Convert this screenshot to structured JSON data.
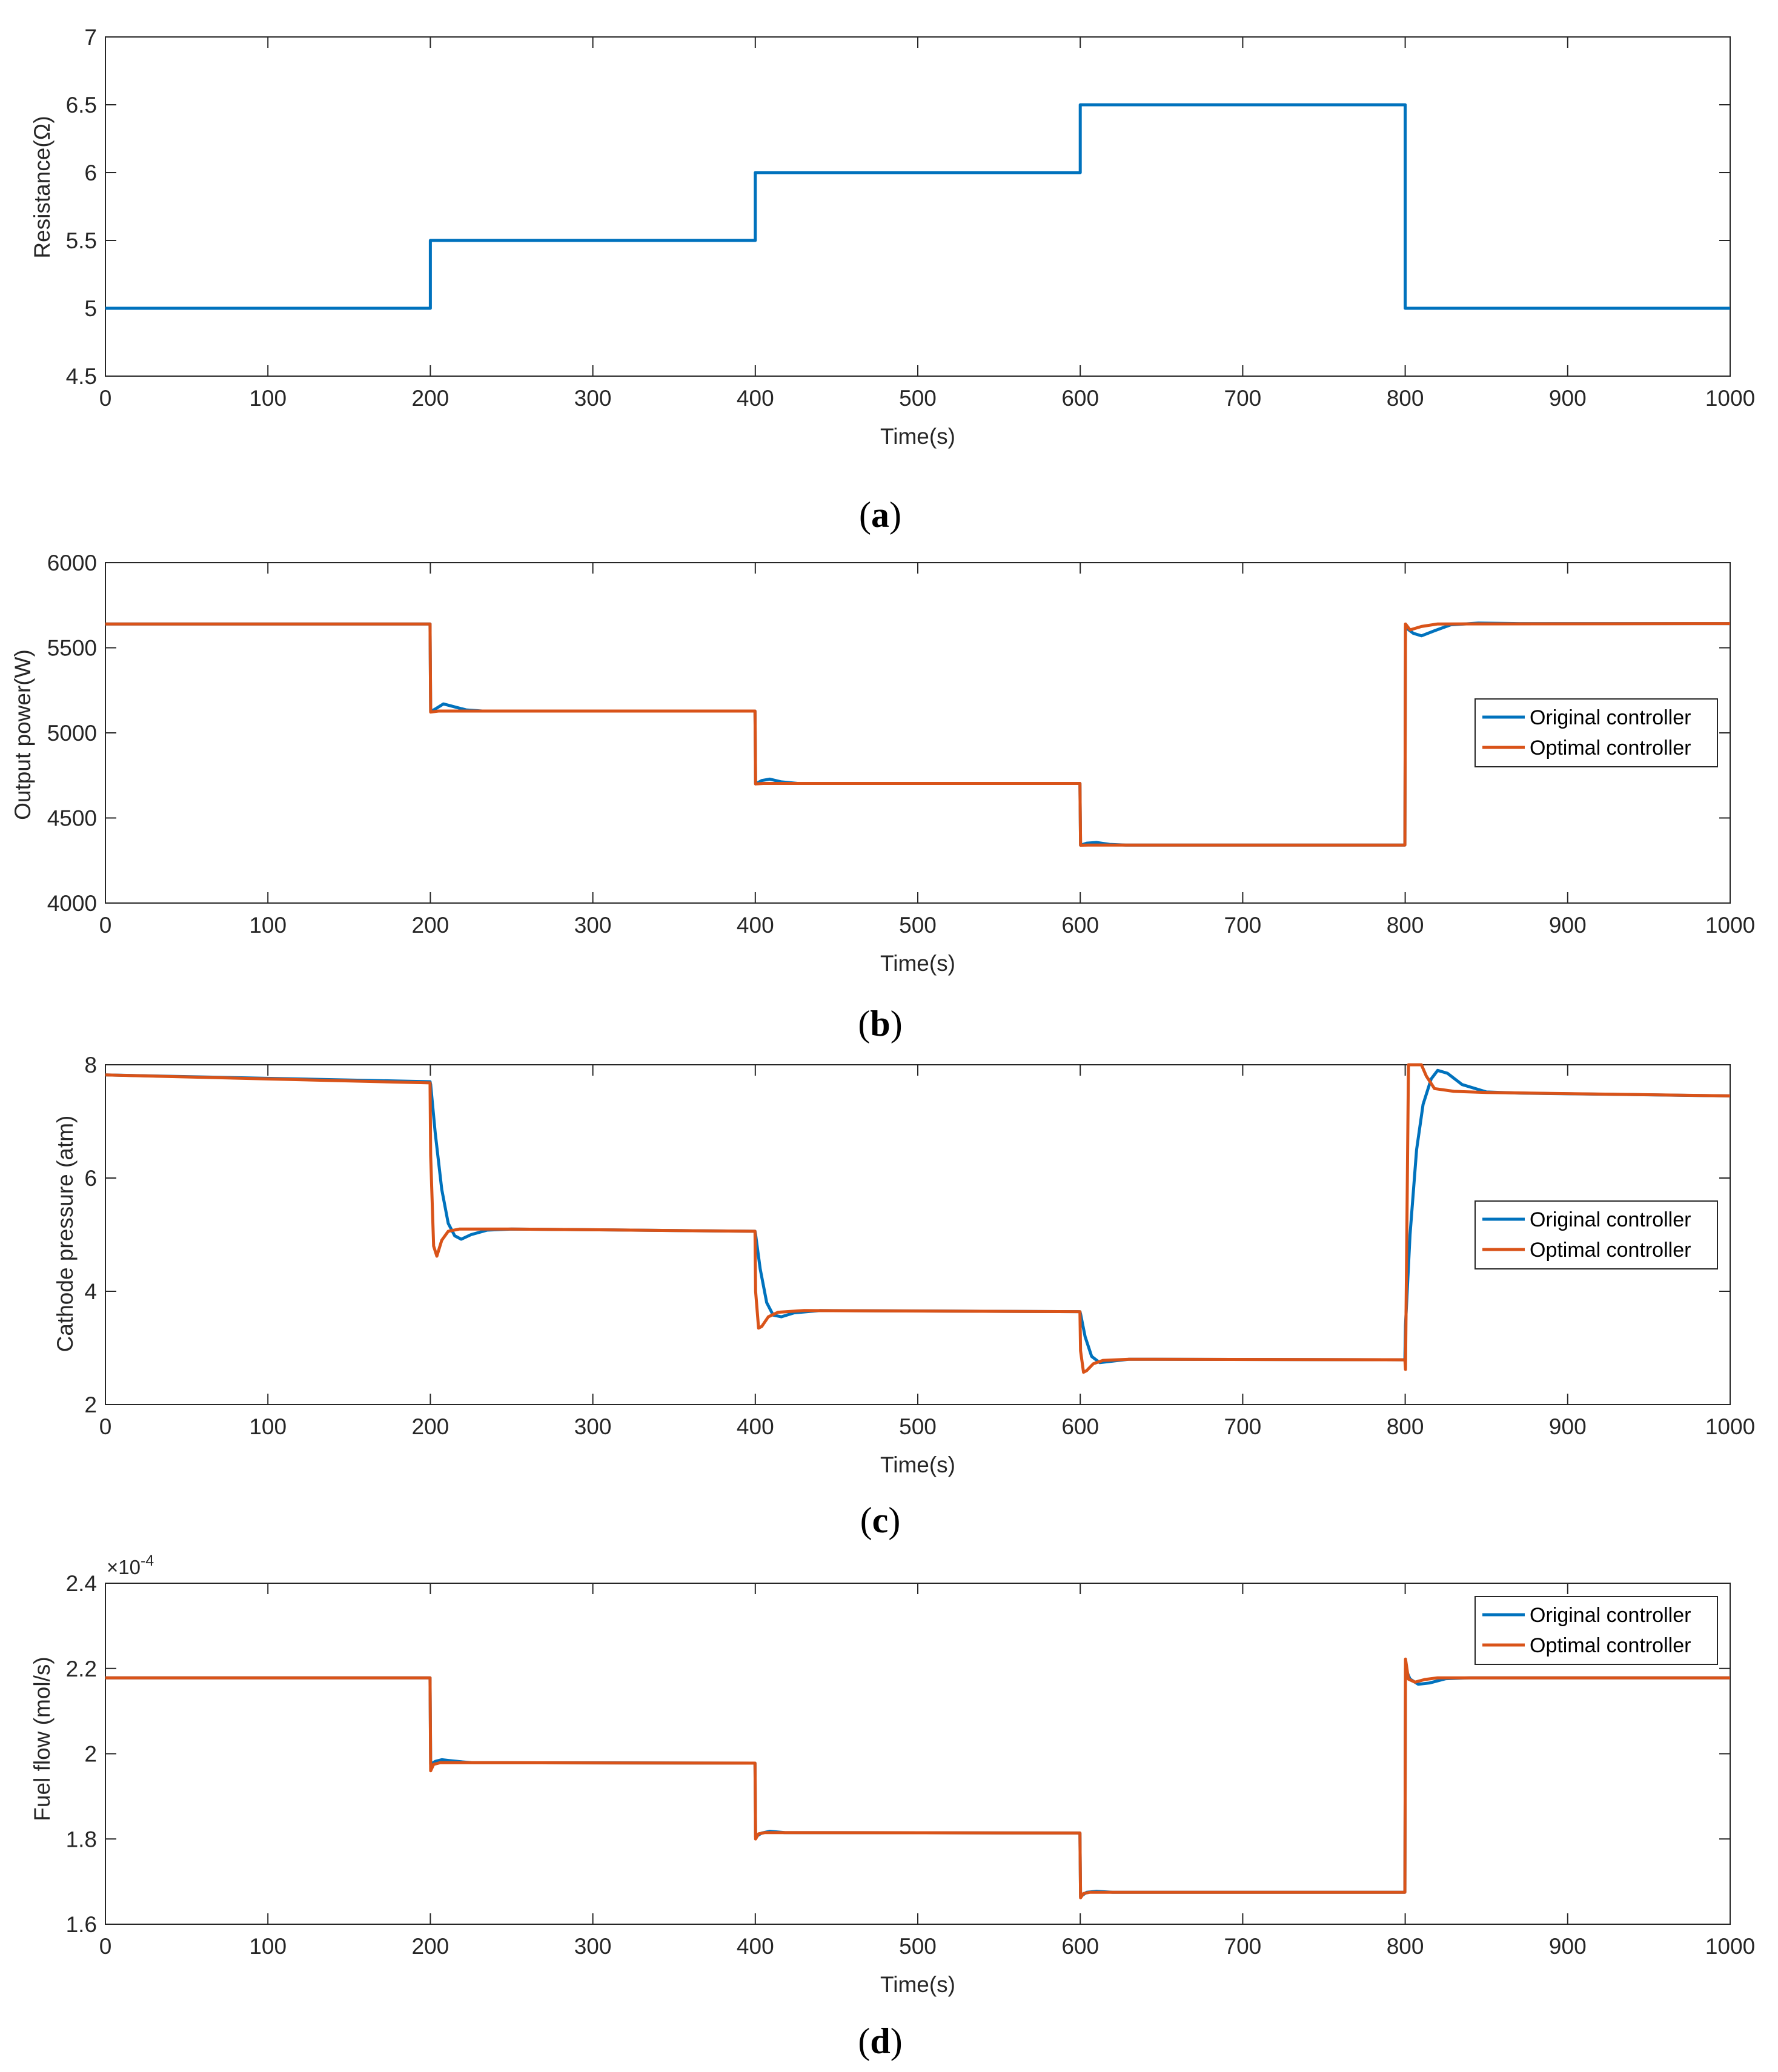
{
  "colors": {
    "original": "#0072BD",
    "optimal": "#D95319",
    "axes": "#262626",
    "grid": "#262626"
  },
  "chart_data": [
    {
      "id": "a",
      "type": "line",
      "caption": "a",
      "xlabel": "Time(s)",
      "ylabel": "Resistance(Ω)",
      "xlim": [
        0,
        1000
      ],
      "ylim": [
        4.5,
        7
      ],
      "xticks": [
        0,
        100,
        200,
        300,
        400,
        500,
        600,
        700,
        800,
        900,
        1000
      ],
      "yticks": [
        4.5,
        5,
        5.5,
        6,
        6.5,
        7
      ],
      "ytick_labels": [
        "4.5",
        "5",
        "5.5",
        "6",
        "6.5",
        "7"
      ],
      "exponent_label": null,
      "legend": null,
      "series": [
        {
          "name": "Resistance",
          "color": "#0072BD",
          "points": [
            [
              0,
              5
            ],
            [
              200,
              5
            ],
            [
              200,
              5.5
            ],
            [
              400,
              5.5
            ],
            [
              400,
              6
            ],
            [
              600,
              6
            ],
            [
              600,
              6.5
            ],
            [
              800,
              6.5
            ],
            [
              800,
              5
            ],
            [
              1000,
              5
            ]
          ]
        }
      ]
    },
    {
      "id": "b",
      "type": "line",
      "caption": "b",
      "xlabel": "Time(s)",
      "ylabel": "Output power(W)",
      "xlim": [
        0,
        1000
      ],
      "ylim": [
        4000,
        6000
      ],
      "xticks": [
        0,
        100,
        200,
        300,
        400,
        500,
        600,
        700,
        800,
        900,
        1000
      ],
      "yticks": [
        4000,
        4500,
        5000,
        5500,
        6000
      ],
      "ytick_labels": [
        "4000",
        "4500",
        "5000",
        "5500",
        "6000"
      ],
      "exponent_label": null,
      "legend": {
        "position": "right-middle",
        "entries": [
          "Original controller",
          "Optimal controller"
        ]
      },
      "series": [
        {
          "name": "Original controller",
          "color": "#0072BD",
          "points": [
            [
              0,
              5640
            ],
            [
              199.8,
              5640
            ],
            [
              200.2,
              5125
            ],
            [
              203,
              5140
            ],
            [
              208,
              5170
            ],
            [
              214,
              5155
            ],
            [
              222,
              5135
            ],
            [
              232,
              5128
            ],
            [
              399.8,
              5128
            ],
            [
              400.2,
              4700
            ],
            [
              404,
              4720
            ],
            [
              409,
              4728
            ],
            [
              416,
              4712
            ],
            [
              426,
              4703
            ],
            [
              599.8,
              4703
            ],
            [
              600.2,
              4340
            ],
            [
              604,
              4352
            ],
            [
              610,
              4356
            ],
            [
              618,
              4345
            ],
            [
              628,
              4341
            ],
            [
              799.8,
              4341
            ],
            [
              800.2,
              5620
            ],
            [
              805,
              5585
            ],
            [
              810,
              5570
            ],
            [
              818,
              5600
            ],
            [
              828,
              5635
            ],
            [
              845,
              5645
            ],
            [
              870,
              5642
            ],
            [
              1000,
              5642
            ]
          ]
        },
        {
          "name": "Optimal controller",
          "color": "#D95319",
          "points": [
            [
              0,
              5640
            ],
            [
              199.8,
              5640
            ],
            [
              200.2,
              5122
            ],
            [
              205,
              5128
            ],
            [
              215,
              5128
            ],
            [
              399.8,
              5128
            ],
            [
              400.2,
              4700
            ],
            [
              405,
              4703
            ],
            [
              599.8,
              4703
            ],
            [
              600.2,
              4340
            ],
            [
              605,
              4341
            ],
            [
              799.8,
              4341
            ],
            [
              800.2,
              5640
            ],
            [
              803,
              5605
            ],
            [
              810,
              5625
            ],
            [
              820,
              5640
            ],
            [
              1000,
              5642
            ]
          ]
        }
      ]
    },
    {
      "id": "c",
      "type": "line",
      "caption": "c",
      "xlabel": "Time(s)",
      "ylabel": "Cathode pressure (atm)",
      "xlim": [
        0,
        1000
      ],
      "ylim": [
        2,
        8
      ],
      "xticks": [
        0,
        100,
        200,
        300,
        400,
        500,
        600,
        700,
        800,
        900,
        1000
      ],
      "yticks": [
        2,
        4,
        6,
        8
      ],
      "ytick_labels": [
        "2",
        "4",
        "6",
        "8"
      ],
      "exponent_label": null,
      "legend": {
        "position": "right-middle",
        "entries": [
          "Original controller",
          "Optimal controller"
        ]
      },
      "series": [
        {
          "name": "Original controller",
          "color": "#0072BD",
          "points": [
            [
              0,
              7.82
            ],
            [
              199.8,
              7.7
            ],
            [
              200.2,
              7.65
            ],
            [
              203,
              6.8
            ],
            [
              207,
              5.8
            ],
            [
              211,
              5.2
            ],
            [
              215,
              4.98
            ],
            [
              219,
              4.92
            ],
            [
              225,
              5.0
            ],
            [
              235,
              5.08
            ],
            [
              250,
              5.1
            ],
            [
              399.8,
              5.06
            ],
            [
              400.2,
              5.0
            ],
            [
              403,
              4.4
            ],
            [
              407,
              3.8
            ],
            [
              411,
              3.58
            ],
            [
              416,
              3.55
            ],
            [
              424,
              3.62
            ],
            [
              440,
              3.66
            ],
            [
              599.8,
              3.64
            ],
            [
              600.2,
              3.6
            ],
            [
              603,
              3.2
            ],
            [
              607,
              2.85
            ],
            [
              612,
              2.74
            ],
            [
              618,
              2.76
            ],
            [
              630,
              2.8
            ],
            [
              799.8,
              2.79
            ],
            [
              800.2,
              3.4
            ],
            [
              803,
              5.0
            ],
            [
              807,
              6.5
            ],
            [
              811,
              7.3
            ],
            [
              816,
              7.75
            ],
            [
              820,
              7.9
            ],
            [
              826,
              7.85
            ],
            [
              835,
              7.65
            ],
            [
              850,
              7.52
            ],
            [
              870,
              7.5
            ],
            [
              1000,
              7.45
            ]
          ]
        },
        {
          "name": "Optimal controller",
          "color": "#D95319",
          "points": [
            [
              0,
              7.82
            ],
            [
              199.8,
              7.68
            ],
            [
              200.2,
              6.4
            ],
            [
              202,
              4.8
            ],
            [
              204,
              4.62
            ],
            [
              207,
              4.9
            ],
            [
              211,
              5.06
            ],
            [
              218,
              5.1
            ],
            [
              250,
              5.1
            ],
            [
              399.8,
              5.06
            ],
            [
              400.2,
              4.0
            ],
            [
              402,
              3.35
            ],
            [
              404,
              3.38
            ],
            [
              408,
              3.55
            ],
            [
              414,
              3.63
            ],
            [
              430,
              3.66
            ],
            [
              599.8,
              3.64
            ],
            [
              600.2,
              2.95
            ],
            [
              602,
              2.57
            ],
            [
              604,
              2.6
            ],
            [
              608,
              2.72
            ],
            [
              614,
              2.78
            ],
            [
              630,
              2.8
            ],
            [
              799.8,
              2.79
            ],
            [
              800.2,
              2.62
            ],
            [
              802,
              8.0
            ],
            [
              810,
              8.0
            ],
            [
              813,
              7.8
            ],
            [
              818,
              7.58
            ],
            [
              830,
              7.53
            ],
            [
              850,
              7.51
            ],
            [
              1000,
              7.45
            ]
          ]
        }
      ]
    },
    {
      "id": "d",
      "type": "line",
      "caption": "d",
      "xlabel": "Time(s)",
      "ylabel": "Fuel flow (mol/s)",
      "xlim": [
        0,
        1000
      ],
      "ylim": [
        1.6,
        2.4
      ],
      "xticks": [
        0,
        100,
        200,
        300,
        400,
        500,
        600,
        700,
        800,
        900,
        1000
      ],
      "yticks": [
        1.6,
        1.8,
        2.0,
        2.2,
        2.4
      ],
      "ytick_labels": [
        "1.6",
        "1.8",
        "2",
        "2.2",
        "2.4"
      ],
      "exponent_label": "×10",
      "exponent_power": "-4",
      "legend": {
        "position": "top-right",
        "entries": [
          "Original controller",
          "Optimal controller"
        ]
      },
      "series": [
        {
          "name": "Original controller",
          "color": "#0072BD",
          "points": [
            [
              0,
              2.178
            ],
            [
              199.8,
              2.178
            ],
            [
              200.2,
              1.975
            ],
            [
              203,
              1.982
            ],
            [
              207,
              1.986
            ],
            [
              214,
              1.983
            ],
            [
              225,
              1.979
            ],
            [
              399.8,
              1.978
            ],
            [
              400.2,
              1.805
            ],
            [
              404,
              1.814
            ],
            [
              409,
              1.818
            ],
            [
              418,
              1.815
            ],
            [
              599.8,
              1.814
            ],
            [
              600.2,
              1.665
            ],
            [
              604,
              1.675
            ],
            [
              610,
              1.677
            ],
            [
              620,
              1.675
            ],
            [
              799.8,
              1.675
            ],
            [
              800.2,
              2.2
            ],
            [
              803,
              2.175
            ],
            [
              808,
              2.163
            ],
            [
              815,
              2.166
            ],
            [
              825,
              2.176
            ],
            [
              840,
              2.178
            ],
            [
              1000,
              2.178
            ]
          ]
        },
        {
          "name": "Optimal controller",
          "color": "#D95319",
          "points": [
            [
              0,
              2.178
            ],
            [
              199.8,
              2.178
            ],
            [
              200.2,
              1.96
            ],
            [
              202,
              1.975
            ],
            [
              206,
              1.979
            ],
            [
              399.8,
              1.978
            ],
            [
              400.2,
              1.8
            ],
            [
              402,
              1.812
            ],
            [
              406,
              1.815
            ],
            [
              599.8,
              1.814
            ],
            [
              600.2,
              1.662
            ],
            [
              602,
              1.672
            ],
            [
              606,
              1.675
            ],
            [
              799.8,
              1.675
            ],
            [
              800.2,
              2.222
            ],
            [
              802,
              2.175
            ],
            [
              806,
              2.168
            ],
            [
              812,
              2.174
            ],
            [
              820,
              2.178
            ],
            [
              1000,
              2.178
            ]
          ]
        }
      ]
    }
  ]
}
